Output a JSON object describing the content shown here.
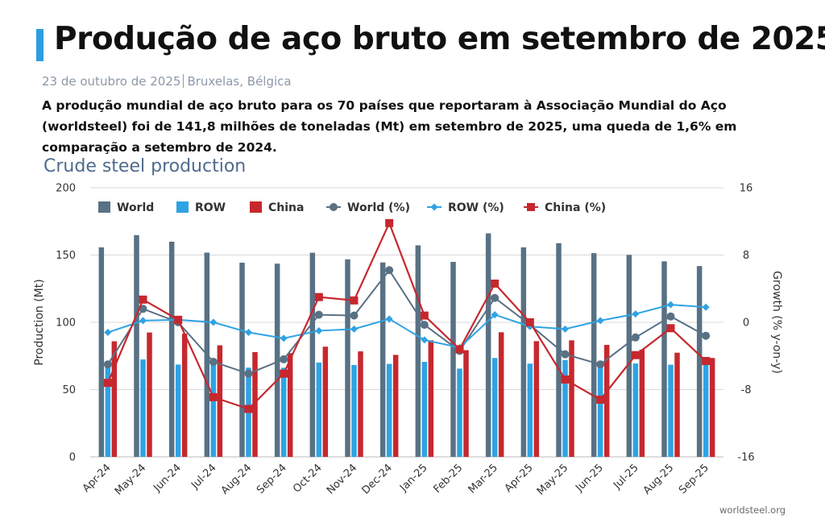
{
  "header": {
    "title": "Produção de aço bruto em setembro de 2025",
    "date": "23 de outubro de 2025",
    "location": "Bruxelas, Bélgica",
    "lead": "A produção mundial de aço bruto para os 70 países que reportaram à Associação Mundial do Aço (worldsteel) foi de 141,8 milhões de toneladas (Mt) em setembro de 2025, uma queda de 1,6% em comparação a setembro de 2024."
  },
  "source": "worldsteel.org",
  "colors": {
    "world": "#587184",
    "row": "#2ea3e4",
    "china": "#c6282e",
    "accent": "#2a9ee0",
    "grid": "#d9d9d9"
  },
  "chart_data": {
    "type": "bar",
    "title": "Crude steel production",
    "xlabel": "",
    "ylabel": "Production (Mt)",
    "y2label": "Growth (% y-on-y)",
    "ylim": [
      0,
      200
    ],
    "y2lim": [
      -16,
      16
    ],
    "yticks": [
      0,
      50,
      100,
      150,
      200
    ],
    "y2ticks": [
      -16,
      -8,
      0,
      8,
      16
    ],
    "grid": true,
    "legend_position": "top-left",
    "categories": [
      "Apr-24",
      "May-24",
      "Jun-24",
      "Jul-24",
      "Aug-24",
      "Sep-24",
      "Oct-24",
      "Nov-24",
      "Dec-24",
      "Jan-25",
      "Feb-25",
      "Mar-25",
      "Apr-25",
      "May-25",
      "Jun-25",
      "Jul-25",
      "Aug-25",
      "Sep-25"
    ],
    "series": [
      {
        "name": "World",
        "kind": "bar",
        "axis": "left",
        "values": [
          155.7,
          164.8,
          159.9,
          151.8,
          144.3,
          143.6,
          151.7,
          146.8,
          144.5,
          157.2,
          144.9,
          166.1,
          155.7,
          158.8,
          151.4,
          150.1,
          145.3,
          141.8
        ]
      },
      {
        "name": "ROW",
        "kind": "bar",
        "axis": "left",
        "values": [
          69.5,
          72.4,
          68.6,
          70.1,
          66.3,
          66.2,
          70.1,
          68.3,
          69.1,
          70.6,
          65.6,
          73.5,
          69.3,
          72.0,
          68.4,
          69.4,
          68.5,
          68.3
        ]
      },
      {
        "name": "China",
        "kind": "bar",
        "axis": "left",
        "values": [
          85.9,
          92.4,
          91.6,
          82.9,
          77.9,
          77.1,
          81.9,
          78.4,
          75.8,
          86.6,
          79.3,
          92.6,
          86.0,
          86.6,
          83.2,
          79.7,
          77.4,
          73.5
        ]
      },
      {
        "name": "World (%)",
        "kind": "line",
        "axis": "right",
        "values": [
          -5.0,
          1.6,
          0.0,
          -4.7,
          -6.1,
          -4.4,
          0.9,
          0.8,
          6.2,
          -0.3,
          -3.4,
          2.9,
          -0.3,
          -3.8,
          -5.0,
          -1.8,
          0.7,
          -1.6
        ]
      },
      {
        "name": "ROW (%)",
        "kind": "line",
        "axis": "right",
        "values": [
          -1.2,
          0.2,
          0.3,
          0.0,
          -1.2,
          -1.9,
          -1.0,
          -0.8,
          0.4,
          -2.1,
          -3.0,
          0.9,
          -0.5,
          -0.8,
          0.2,
          1.0,
          2.1,
          1.8
        ]
      },
      {
        "name": "China (%)",
        "kind": "line",
        "axis": "right",
        "values": [
          -7.2,
          2.7,
          0.3,
          -8.9,
          -10.3,
          -6.1,
          3.0,
          2.6,
          11.8,
          0.8,
          -3.2,
          4.6,
          0.0,
          -6.8,
          -9.2,
          -3.9,
          -0.7,
          -4.6
        ]
      }
    ]
  }
}
